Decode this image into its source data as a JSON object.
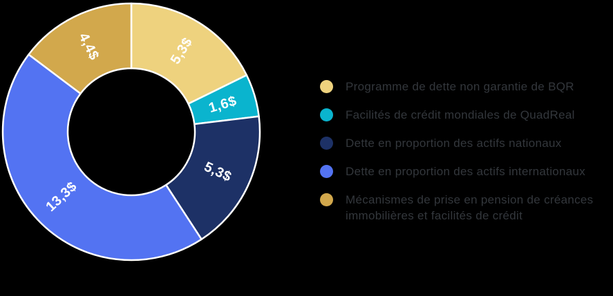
{
  "background_color": "#000000",
  "chart_data": {
    "type": "pie",
    "subtype": "donut",
    "direction": "clockwise",
    "start_angle_deg": 0,
    "total": 29.9,
    "segments": [
      {
        "label": "Programme de dette non garantie de BQR",
        "value": 5.3,
        "value_label": "5,3$",
        "color": "#EED27E"
      },
      {
        "label": "Facilités de crédit mondiales de QuadReal",
        "value": 1.6,
        "value_label": "1,6$",
        "color": "#0AB4CE"
      },
      {
        "label": "Dette en proportion des actifs nationaux",
        "value": 5.3,
        "value_label": "5,3$",
        "color": "#1D3166"
      },
      {
        "label": "Dette en proportion des actifs internationaux",
        "value": 13.3,
        "value_label": "13,3$",
        "color": "#5373F2"
      },
      {
        "label": "Mécanismes de prise en pension de créances immobilières et facilités de crédit",
        "value": 4.4,
        "value_label": "4,4$",
        "color": "#D2A84C"
      }
    ],
    "segment_border_color": "#FFFFFF",
    "value_label_color": "#FFFFFF",
    "legend_position": "right",
    "legend_text_color": "#33373C",
    "grid": false
  }
}
